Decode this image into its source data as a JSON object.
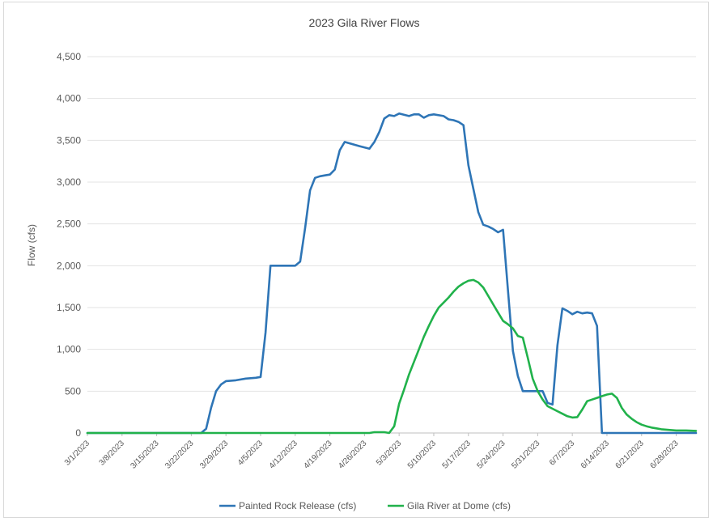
{
  "chart_data": {
    "type": "line",
    "title": "2023 Gila River Flows",
    "xlabel": "",
    "ylabel": "Flow (cfs)",
    "ylim": [
      0,
      4500
    ],
    "yticks": [
      0,
      500,
      1000,
      1500,
      2000,
      2500,
      3000,
      3500,
      4000,
      4500
    ],
    "ytick_labels": [
      "0",
      "500",
      "1,000",
      "1,500",
      "2,000",
      "2,500",
      "3,000",
      "3,500",
      "4,000",
      "4,500"
    ],
    "xlim": [
      "2023-03-01",
      "2023-07-02"
    ],
    "xticks": [
      "2023-03-01",
      "2023-03-08",
      "2023-03-15",
      "2023-03-22",
      "2023-03-29",
      "2023-04-05",
      "2023-04-12",
      "2023-04-19",
      "2023-04-26",
      "2023-05-03",
      "2023-05-10",
      "2023-05-17",
      "2023-05-24",
      "2023-05-31",
      "2023-06-07",
      "2023-06-14",
      "2023-06-21",
      "2023-06-28"
    ],
    "xtick_labels": [
      "3/1/2023",
      "3/8/2023",
      "3/15/2023",
      "3/22/2023",
      "3/29/2023",
      "4/5/2023",
      "4/12/2023",
      "4/19/2023",
      "4/26/2023",
      "5/3/2023",
      "5/10/2023",
      "5/17/2023",
      "5/24/2023",
      "5/31/2023",
      "6/7/2023",
      "6/14/2023",
      "6/21/2023",
      "6/28/2023"
    ],
    "grid": "horizontal",
    "legend_position": "bottom",
    "series": [
      {
        "name": "Painted Rock Release (cfs)",
        "color": "#2E75B6",
        "points": [
          [
            "2023-03-01",
            0
          ],
          [
            "2023-03-24",
            0
          ],
          [
            "2023-03-25",
            50
          ],
          [
            "2023-03-26",
            300
          ],
          [
            "2023-03-27",
            500
          ],
          [
            "2023-03-28",
            580
          ],
          [
            "2023-03-29",
            620
          ],
          [
            "2023-03-31",
            630
          ],
          [
            "2023-04-02",
            650
          ],
          [
            "2023-04-04",
            660
          ],
          [
            "2023-04-05",
            670
          ],
          [
            "2023-04-06",
            1200
          ],
          [
            "2023-04-07",
            2000
          ],
          [
            "2023-04-12",
            2000
          ],
          [
            "2023-04-13",
            2050
          ],
          [
            "2023-04-14",
            2450
          ],
          [
            "2023-04-15",
            2900
          ],
          [
            "2023-04-16",
            3050
          ],
          [
            "2023-04-17",
            3070
          ],
          [
            "2023-04-18",
            3080
          ],
          [
            "2023-04-19",
            3090
          ],
          [
            "2023-04-20",
            3150
          ],
          [
            "2023-04-21",
            3380
          ],
          [
            "2023-04-22",
            3480
          ],
          [
            "2023-04-25",
            3430
          ],
          [
            "2023-04-27",
            3400
          ],
          [
            "2023-04-28",
            3480
          ],
          [
            "2023-04-29",
            3600
          ],
          [
            "2023-04-30",
            3760
          ],
          [
            "2023-05-01",
            3800
          ],
          [
            "2023-05-02",
            3790
          ],
          [
            "2023-05-03",
            3820
          ],
          [
            "2023-05-05",
            3790
          ],
          [
            "2023-05-06",
            3810
          ],
          [
            "2023-05-07",
            3810
          ],
          [
            "2023-05-08",
            3770
          ],
          [
            "2023-05-09",
            3800
          ],
          [
            "2023-05-10",
            3810
          ],
          [
            "2023-05-12",
            3790
          ],
          [
            "2023-05-13",
            3750
          ],
          [
            "2023-05-14",
            3740
          ],
          [
            "2023-05-15",
            3720
          ],
          [
            "2023-05-16",
            3680
          ],
          [
            "2023-05-17",
            3200
          ],
          [
            "2023-05-18",
            2920
          ],
          [
            "2023-05-19",
            2640
          ],
          [
            "2023-05-20",
            2490
          ],
          [
            "2023-05-21",
            2470
          ],
          [
            "2023-05-22",
            2440
          ],
          [
            "2023-05-23",
            2400
          ],
          [
            "2023-05-24",
            2430
          ],
          [
            "2023-05-25",
            1700
          ],
          [
            "2023-05-26",
            980
          ],
          [
            "2023-05-27",
            680
          ],
          [
            "2023-05-28",
            500
          ],
          [
            "2023-06-01",
            500
          ],
          [
            "2023-06-02",
            360
          ],
          [
            "2023-06-03",
            340
          ],
          [
            "2023-06-04",
            1050
          ],
          [
            "2023-06-05",
            1490
          ],
          [
            "2023-06-06",
            1460
          ],
          [
            "2023-06-07",
            1420
          ],
          [
            "2023-06-08",
            1450
          ],
          [
            "2023-06-09",
            1430
          ],
          [
            "2023-06-10",
            1440
          ],
          [
            "2023-06-11",
            1430
          ],
          [
            "2023-06-12",
            1280
          ],
          [
            "2023-06-13",
            0
          ],
          [
            "2023-07-02",
            0
          ]
        ]
      },
      {
        "name": "Gila River at Dome (cfs)",
        "color": "#21B24B",
        "points": [
          [
            "2023-03-01",
            0
          ],
          [
            "2023-04-27",
            0
          ],
          [
            "2023-04-28",
            10
          ],
          [
            "2023-04-30",
            10
          ],
          [
            "2023-05-01",
            0
          ],
          [
            "2023-05-02",
            80
          ],
          [
            "2023-05-03",
            350
          ],
          [
            "2023-05-04",
            520
          ],
          [
            "2023-05-05",
            700
          ],
          [
            "2023-05-06",
            850
          ],
          [
            "2023-05-07",
            1000
          ],
          [
            "2023-05-08",
            1150
          ],
          [
            "2023-05-09",
            1280
          ],
          [
            "2023-05-10",
            1400
          ],
          [
            "2023-05-11",
            1500
          ],
          [
            "2023-05-12",
            1560
          ],
          [
            "2023-05-13",
            1620
          ],
          [
            "2023-05-14",
            1690
          ],
          [
            "2023-05-15",
            1750
          ],
          [
            "2023-05-16",
            1790
          ],
          [
            "2023-05-17",
            1820
          ],
          [
            "2023-05-18",
            1830
          ],
          [
            "2023-05-19",
            1800
          ],
          [
            "2023-05-20",
            1740
          ],
          [
            "2023-05-21",
            1640
          ],
          [
            "2023-05-22",
            1540
          ],
          [
            "2023-05-23",
            1440
          ],
          [
            "2023-05-24",
            1340
          ],
          [
            "2023-05-25",
            1300
          ],
          [
            "2023-05-26",
            1250
          ],
          [
            "2023-05-27",
            1160
          ],
          [
            "2023-05-28",
            1140
          ],
          [
            "2023-05-29",
            900
          ],
          [
            "2023-05-30",
            650
          ],
          [
            "2023-05-31",
            500
          ],
          [
            "2023-06-01",
            400
          ],
          [
            "2023-06-02",
            320
          ],
          [
            "2023-06-03",
            290
          ],
          [
            "2023-06-04",
            260
          ],
          [
            "2023-06-05",
            230
          ],
          [
            "2023-06-06",
            200
          ],
          [
            "2023-06-07",
            185
          ],
          [
            "2023-06-08",
            190
          ],
          [
            "2023-06-09",
            280
          ],
          [
            "2023-06-10",
            380
          ],
          [
            "2023-06-11",
            400
          ],
          [
            "2023-06-12",
            420
          ],
          [
            "2023-06-13",
            440
          ],
          [
            "2023-06-14",
            460
          ],
          [
            "2023-06-15",
            470
          ],
          [
            "2023-06-16",
            420
          ],
          [
            "2023-06-17",
            300
          ],
          [
            "2023-06-18",
            220
          ],
          [
            "2023-06-19",
            170
          ],
          [
            "2023-06-20",
            130
          ],
          [
            "2023-06-21",
            100
          ],
          [
            "2023-06-22",
            80
          ],
          [
            "2023-06-23",
            65
          ],
          [
            "2023-06-24",
            55
          ],
          [
            "2023-06-25",
            45
          ],
          [
            "2023-06-26",
            40
          ],
          [
            "2023-06-27",
            35
          ],
          [
            "2023-06-28",
            30
          ],
          [
            "2023-06-30",
            30
          ],
          [
            "2023-07-02",
            25
          ]
        ]
      }
    ]
  }
}
